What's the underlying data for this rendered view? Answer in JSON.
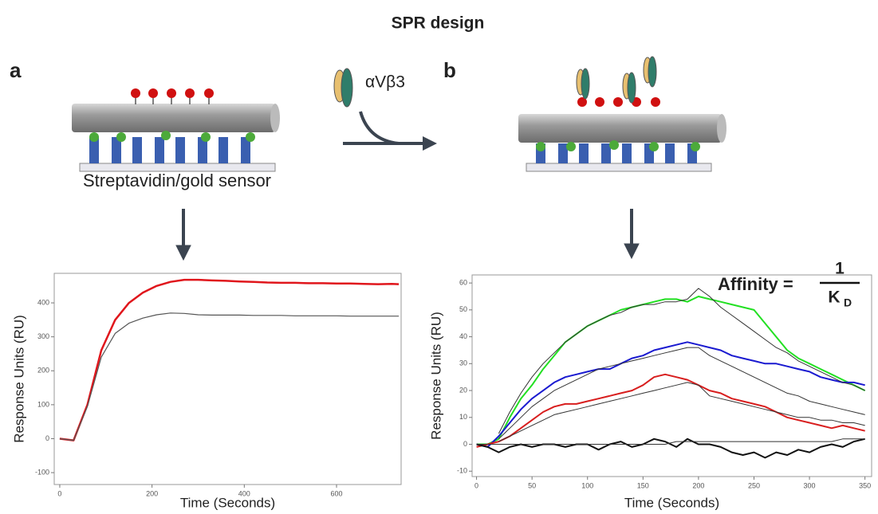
{
  "header": {
    "title": "SPR design",
    "panel_a": "a",
    "panel_b": "b",
    "ligand": "αVβ3",
    "sensor": "Streptavidin/gold sensor"
  },
  "affinity": {
    "label": "Affinity =",
    "numerator": "1",
    "denominator": "K",
    "subscript": "D"
  },
  "chart_data": [
    {
      "type": "line",
      "xlabel": "Time (Seconds)",
      "ylabel": "Response Units (RU)",
      "x": [
        0,
        30,
        60,
        90,
        120,
        150,
        180,
        210,
        240,
        270,
        300,
        330,
        360,
        390,
        420,
        450,
        480,
        510,
        540,
        570,
        600,
        630,
        660,
        690,
        720,
        735
      ],
      "series": [
        {
          "color": "#e0161c",
          "line_width": 2.5,
          "values": [
            0,
            -5,
            100,
            260,
            350,
            400,
            430,
            450,
            462,
            468,
            468,
            466,
            465,
            463,
            462,
            460,
            459,
            459,
            458,
            458,
            457,
            457,
            456,
            455,
            456,
            455
          ]
        },
        {
          "color": "#555555",
          "line_width": 1.2,
          "values": [
            0,
            -5,
            95,
            240,
            310,
            340,
            355,
            365,
            370,
            369,
            365,
            364,
            364,
            364,
            363,
            363,
            363,
            362,
            362,
            362,
            362,
            361,
            361,
            361,
            361,
            361
          ]
        }
      ],
      "xlim": [
        -12,
        740
      ],
      "xticks": [
        0,
        200,
        400,
        600
      ],
      "ylim": [
        -135,
        487
      ],
      "yticks": [
        -100,
        0,
        100,
        200,
        300,
        400
      ],
      "grid": false
    },
    {
      "type": "line",
      "xlabel": "Time (Seconds)",
      "ylabel": "Response Units (RU)",
      "x": [
        0,
        10,
        20,
        30,
        40,
        50,
        60,
        70,
        80,
        90,
        100,
        110,
        120,
        130,
        140,
        150,
        160,
        170,
        180,
        190,
        200,
        210,
        220,
        230,
        240,
        250,
        260,
        270,
        280,
        290,
        300,
        310,
        320,
        330,
        340,
        350
      ],
      "series": [
        {
          "color": "#22e022",
          "line_width": 2,
          "values": [
            0,
            0,
            2,
            10,
            17,
            22,
            28,
            33,
            38,
            41,
            44,
            46,
            48,
            50,
            51,
            52,
            53,
            54,
            54,
            53,
            55,
            54,
            53,
            52,
            51,
            50,
            45,
            40,
            35,
            32,
            30,
            28,
            26,
            24,
            22,
            20
          ]
        },
        {
          "color": "#1a1ad0",
          "line_width": 2,
          "values": [
            0,
            -1,
            3,
            8,
            13,
            17,
            20,
            23,
            25,
            26,
            27,
            28,
            28,
            30,
            32,
            33,
            35,
            36,
            37,
            38,
            37,
            36,
            35,
            33,
            32,
            31,
            30,
            30,
            29,
            28,
            27,
            25,
            24,
            23,
            23,
            22
          ]
        },
        {
          "color": "#d81e1e",
          "line_width": 2,
          "values": [
            -1,
            0,
            1,
            3,
            6,
            9,
            12,
            14,
            15,
            15,
            16,
            17,
            18,
            19,
            20,
            22,
            25,
            26,
            25,
            24,
            22,
            20,
            19,
            17,
            16,
            15,
            14,
            12,
            10,
            9,
            8,
            7,
            6,
            7,
            6,
            5
          ]
        },
        {
          "color": "#111111",
          "line_width": 2,
          "values": [
            0,
            -1,
            -3,
            -1,
            0,
            -1,
            0,
            0,
            -1,
            0,
            0,
            -2,
            0,
            1,
            -1,
            0,
            2,
            1,
            -1,
            2,
            0,
            0,
            -1,
            -3,
            -4,
            -3,
            -5,
            -3,
            -4,
            -2,
            -3,
            -1,
            0,
            -1,
            1,
            2
          ]
        },
        {
          "color": "#333333",
          "line_width": 1,
          "values": [
            null,
            null,
            4,
            12,
            19,
            25,
            30,
            34,
            38,
            41,
            44,
            46,
            48,
            49,
            51,
            52,
            52,
            53,
            53,
            54,
            58,
            55,
            51,
            48,
            45,
            42,
            39,
            36,
            34,
            31,
            29,
            27,
            25,
            23,
            22,
            20
          ]
        },
        {
          "color": "#333333",
          "line_width": 1,
          "values": [
            null,
            null,
            2,
            6,
            10,
            14,
            17,
            20,
            22,
            24,
            26,
            28,
            29,
            30,
            31,
            32,
            33,
            34,
            35,
            36,
            36,
            33,
            31,
            29,
            27,
            25,
            23,
            21,
            19,
            18,
            16,
            15,
            14,
            13,
            12,
            11
          ]
        },
        {
          "color": "#333333",
          "line_width": 1,
          "values": [
            null,
            null,
            1,
            3,
            5,
            7,
            9,
            11,
            12,
            13,
            14,
            15,
            16,
            17,
            18,
            19,
            20,
            21,
            22,
            23,
            22,
            18,
            17,
            16,
            15,
            14,
            13,
            12,
            11,
            10,
            10,
            9,
            9,
            8,
            8,
            7
          ]
        },
        {
          "color": "#333333",
          "line_width": 1,
          "values": [
            0,
            0,
            0,
            0,
            0,
            0,
            0,
            0,
            0,
            0,
            0,
            0,
            0,
            0,
            0,
            0,
            0,
            0,
            1,
            1,
            1,
            1,
            1,
            1,
            1,
            1,
            1,
            1,
            1,
            1,
            1,
            1,
            1,
            2,
            2,
            2
          ]
        }
      ],
      "xlim": [
        -4,
        356
      ],
      "xticks": [
        0,
        50,
        100,
        150,
        200,
        250,
        300,
        350
      ],
      "ylim": [
        -12,
        63
      ],
      "yticks": [
        -10,
        0,
        10,
        20,
        30,
        40,
        50,
        60
      ],
      "grid": false
    }
  ]
}
